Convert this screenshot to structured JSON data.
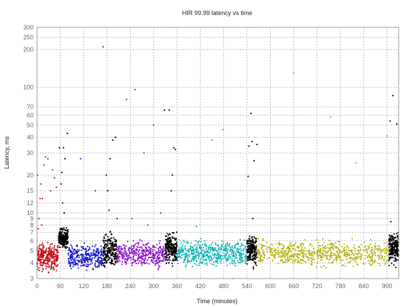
{
  "chart_data": {
    "type": "scatter",
    "title": "HIR 99.99 latency vs time",
    "xlabel": "Time (minutes)",
    "ylabel": "Latency, ms",
    "xlim": [
      0,
      930
    ],
    "ylim": [
      3,
      300
    ],
    "yscale": "log",
    "grid": true,
    "x_ticks": [
      0,
      60,
      120,
      180,
      240,
      300,
      360,
      420,
      480,
      540,
      600,
      660,
      720,
      780,
      840,
      900
    ],
    "y_ticks": [
      3,
      4,
      5,
      6,
      7,
      8,
      9,
      10,
      12,
      15,
      20,
      30,
      40,
      50,
      60,
      70,
      100,
      200,
      250,
      300
    ],
    "series": [
      {
        "color": "#c0141c",
        "x_range": [
          0,
          55
        ],
        "y_band": [
          3.2,
          6.2
        ],
        "count": 300,
        "outliers": [
          [
            2,
            20
          ],
          [
            5,
            9
          ],
          [
            8,
            13
          ],
          [
            10,
            17
          ],
          [
            14,
            13
          ],
          [
            18,
            24
          ],
          [
            22,
            28
          ],
          [
            28,
            27
          ],
          [
            35,
            15
          ],
          [
            40,
            22
          ],
          [
            45,
            19
          ],
          [
            50,
            16
          ],
          [
            3,
            7.5
          ],
          [
            12,
            8
          ]
        ]
      },
      {
        "color": "#000000",
        "x_range": [
          55,
          80
        ],
        "y_band": [
          5.0,
          8.0
        ],
        "count": 220,
        "outliers": [
          [
            58,
            33
          ],
          [
            62,
            17
          ],
          [
            64,
            21
          ],
          [
            66,
            12
          ],
          [
            68,
            33
          ],
          [
            70,
            10
          ],
          [
            72,
            27
          ],
          [
            78,
            43
          ]
        ]
      },
      {
        "color": "#1a1acc",
        "x_range": [
          80,
          170
        ],
        "y_band": [
          3.2,
          6.0
        ],
        "count": 300,
        "outliers": [
          [
            112,
            27
          ],
          [
            150,
            15
          ],
          [
            170,
            210
          ]
        ]
      },
      {
        "color": "#000000",
        "x_range": [
          170,
          205
        ],
        "y_band": [
          3.3,
          7.5
        ],
        "count": 220,
        "outliers": [
          [
            178,
            20
          ],
          [
            182,
            15
          ],
          [
            185,
            10.5
          ],
          [
            188,
            27
          ],
          [
            195,
            38
          ],
          [
            202,
            40
          ],
          [
            206,
            9
          ]
        ]
      },
      {
        "color": "#8a14c8",
        "x_range": [
          205,
          330
        ],
        "y_band": [
          3.4,
          6.5
        ],
        "count": 380,
        "outliers": [
          [
            230,
            80
          ],
          [
            244,
            9
          ],
          [
            252,
            96
          ],
          [
            275,
            30
          ],
          [
            285,
            8
          ],
          [
            300,
            50
          ],
          [
            318,
            10
          ]
        ]
      },
      {
        "color": "#000000",
        "x_range": [
          330,
          360
        ],
        "y_band": [
          3.6,
          7.5
        ],
        "count": 220,
        "outliers": [
          [
            328,
            66
          ],
          [
            340,
            66
          ],
          [
            345,
            15
          ],
          [
            348,
            20
          ],
          [
            352,
            33
          ],
          [
            356,
            32
          ]
        ]
      },
      {
        "color": "#14b4b4",
        "x_range": [
          360,
          540
        ],
        "y_band": [
          3.5,
          6.5
        ],
        "count": 520,
        "outliers": [
          [
            410,
            7.8
          ],
          [
            450,
            38
          ],
          [
            478,
            46
          ],
          [
            505,
            3
          ]
        ]
      },
      {
        "color": "#000000",
        "x_range": [
          540,
          565
        ],
        "y_band": [
          3.4,
          7.5
        ],
        "count": 200,
        "outliers": [
          [
            543,
            19.5
          ],
          [
            545,
            34
          ],
          [
            550,
            62
          ],
          [
            553,
            37
          ],
          [
            558,
            26
          ],
          [
            566,
            35
          ],
          [
            555,
            9
          ]
        ]
      },
      {
        "color": "#b4b414",
        "x_range": [
          565,
          905
        ],
        "y_band": [
          3.5,
          6.5
        ],
        "count": 700,
        "outliers": [
          [
            660,
            130
          ],
          [
            755,
            58
          ],
          [
            820,
            25
          ],
          [
            900,
            41
          ]
        ]
      },
      {
        "color": "#000000",
        "x_range": [
          905,
          930
        ],
        "y_band": [
          3.6,
          7.5
        ],
        "count": 200,
        "outliers": [
          [
            908,
            54
          ],
          [
            910,
            8.5
          ],
          [
            915,
            86
          ],
          [
            925,
            51
          ]
        ]
      }
    ]
  }
}
